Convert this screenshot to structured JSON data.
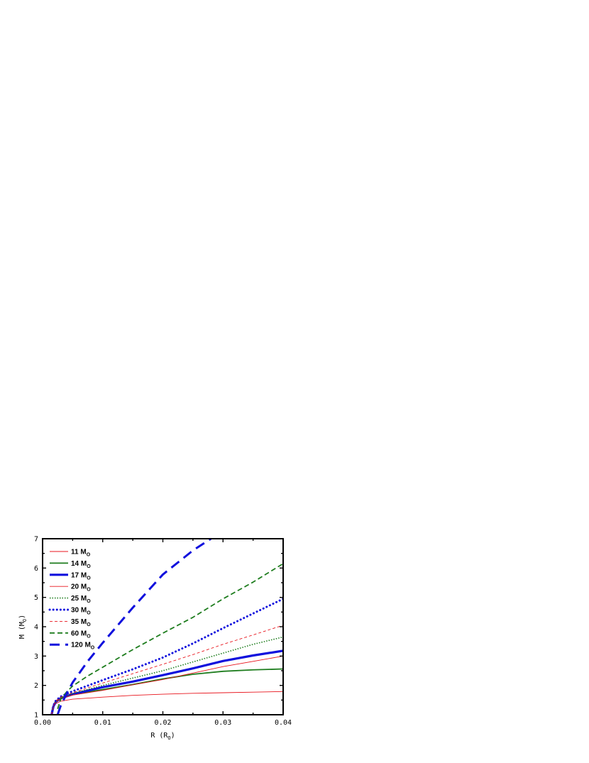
{
  "chart_data": {
    "type": "line",
    "xlabel": "R (R",
    "xlabel_sub": "O",
    "xlabel_close": ")",
    "ylabel": "M (M",
    "ylabel_sub": "O",
    "ylabel_close": ")",
    "xlim": [
      0.0,
      0.04
    ],
    "ylim": [
      1,
      7
    ],
    "xticks": [
      0.0,
      0.01,
      0.02,
      0.03,
      0.04
    ],
    "xtick_labels": [
      "0.00",
      "0.01",
      "0.02",
      "0.03",
      "0.04"
    ],
    "yticks": [
      1,
      2,
      3,
      4,
      5,
      6,
      7
    ],
    "ytick_labels": [
      "1",
      "2",
      "3",
      "4",
      "5",
      "6",
      "7"
    ],
    "grid": false,
    "legend_position": "top-left",
    "series": [
      {
        "name": "11 M",
        "sub": "O",
        "color": "#e8141c",
        "style": "thin-solid",
        "x": [
          0.0015,
          0.0018,
          0.0022,
          0.003,
          0.005,
          0.01,
          0.015,
          0.02,
          0.025,
          0.03,
          0.035,
          0.04
        ],
        "y": [
          1.0,
          1.25,
          1.38,
          1.46,
          1.53,
          1.6,
          1.66,
          1.7,
          1.73,
          1.75,
          1.77,
          1.79
        ]
      },
      {
        "name": "14 M",
        "sub": "O",
        "color": "#1e7d1e",
        "style": "medium-solid",
        "x": [
          0.0015,
          0.0018,
          0.0022,
          0.003,
          0.005,
          0.01,
          0.015,
          0.02,
          0.025,
          0.03,
          0.035,
          0.04
        ],
        "y": [
          1.0,
          1.28,
          1.44,
          1.56,
          1.68,
          1.86,
          2.03,
          2.22,
          2.38,
          2.48,
          2.53,
          2.56
        ]
      },
      {
        "name": "17 M",
        "sub": "O",
        "color": "#1010dd",
        "style": "thick-solid",
        "x": [
          0.0015,
          0.0018,
          0.0022,
          0.003,
          0.005,
          0.01,
          0.015,
          0.02,
          0.025,
          0.03,
          0.035,
          0.04
        ],
        "y": [
          1.0,
          1.28,
          1.44,
          1.56,
          1.7,
          1.94,
          2.13,
          2.35,
          2.58,
          2.83,
          3.02,
          3.18
        ]
      },
      {
        "name": "20 M",
        "sub": "O",
        "color": "#e8141c",
        "style": "thin-solid",
        "x": [
          0.0015,
          0.0018,
          0.0022,
          0.003,
          0.005,
          0.01,
          0.015,
          0.02,
          0.025,
          0.03,
          0.035,
          0.04
        ],
        "y": [
          1.0,
          1.28,
          1.43,
          1.55,
          1.67,
          1.83,
          2.02,
          2.2,
          2.42,
          2.64,
          2.82,
          3.0
        ]
      },
      {
        "name": "25 M",
        "sub": "O",
        "color": "#1e7d1e",
        "style": "dotted",
        "x": [
          0.0015,
          0.0018,
          0.0022,
          0.003,
          0.005,
          0.01,
          0.015,
          0.02,
          0.025,
          0.03,
          0.035,
          0.04
        ],
        "y": [
          1.0,
          1.3,
          1.45,
          1.58,
          1.72,
          2.0,
          2.25,
          2.5,
          2.8,
          3.1,
          3.4,
          3.65
        ]
      },
      {
        "name": "30 M",
        "sub": "O",
        "color": "#1010dd",
        "style": "thick-dotted",
        "x": [
          0.0015,
          0.0018,
          0.0022,
          0.003,
          0.005,
          0.01,
          0.015,
          0.02,
          0.025,
          0.03,
          0.035,
          0.04
        ],
        "y": [
          1.0,
          1.32,
          1.48,
          1.62,
          1.8,
          2.18,
          2.55,
          2.95,
          3.43,
          3.95,
          4.45,
          4.95
        ]
      },
      {
        "name": "35 M",
        "sub": "O",
        "color": "#e8141c",
        "style": "thin-dashed",
        "x": [
          0.0015,
          0.0018,
          0.0022,
          0.003,
          0.005,
          0.01,
          0.015,
          0.02,
          0.025,
          0.03,
          0.035,
          0.04
        ],
        "y": [
          1.0,
          1.3,
          1.46,
          1.6,
          1.75,
          2.08,
          2.4,
          2.72,
          3.05,
          3.4,
          3.72,
          4.05
        ]
      },
      {
        "name": "60 M",
        "sub": "O",
        "color": "#1e7d1e",
        "style": "dashed",
        "x": [
          0.0025,
          0.003,
          0.004,
          0.005,
          0.0075,
          0.01,
          0.015,
          0.02,
          0.025,
          0.03,
          0.035,
          0.04
        ],
        "y": [
          1.2,
          1.52,
          1.78,
          1.98,
          2.32,
          2.62,
          3.22,
          3.78,
          4.32,
          4.95,
          5.52,
          6.15
        ]
      },
      {
        "name": "120 M",
        "sub": "O",
        "color": "#1010dd",
        "style": "thick-dashed",
        "x": [
          0.0025,
          0.003,
          0.004,
          0.005,
          0.0075,
          0.01,
          0.015,
          0.02,
          0.025,
          0.028
        ],
        "y": [
          1.0,
          1.3,
          1.72,
          2.1,
          2.82,
          3.45,
          4.65,
          5.78,
          6.6,
          7.0
        ]
      }
    ]
  }
}
